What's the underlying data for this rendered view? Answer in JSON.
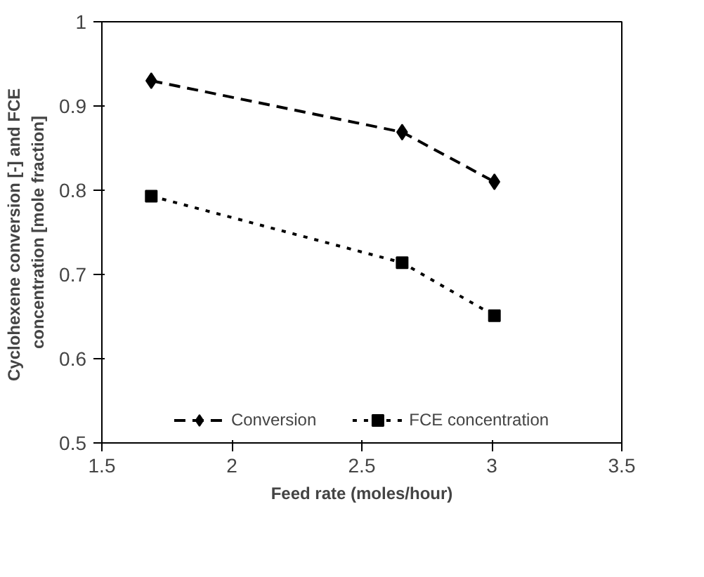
{
  "chart_data": {
    "type": "line",
    "xlabel": "Feed rate (moles/hour)",
    "ylabel": "Cyclohexene conversion [-] and  FCE\nconcentration [mole fraction]",
    "xlim": [
      1.5,
      3.5
    ],
    "xticks": [
      1.5,
      2,
      2.5,
      3,
      3.5
    ],
    "ylim": [
      0.5,
      1
    ],
    "yticks": [
      0.5,
      0.6,
      0.7,
      0.8,
      0.9,
      1
    ],
    "grid": false,
    "legend": "bottom",
    "x": [
      1.69,
      2.655,
      3.01
    ],
    "series": [
      {
        "name": "Conversion",
        "color": "#000000",
        "values": [
          0.93,
          0.869,
          0.81
        ],
        "marker": "diamond",
        "line_style": "dashed"
      },
      {
        "name": "FCE concentration",
        "color": "#000000",
        "values": [
          0.793,
          0.714,
          0.651
        ],
        "marker": "square",
        "line_style": "dotted"
      }
    ]
  }
}
